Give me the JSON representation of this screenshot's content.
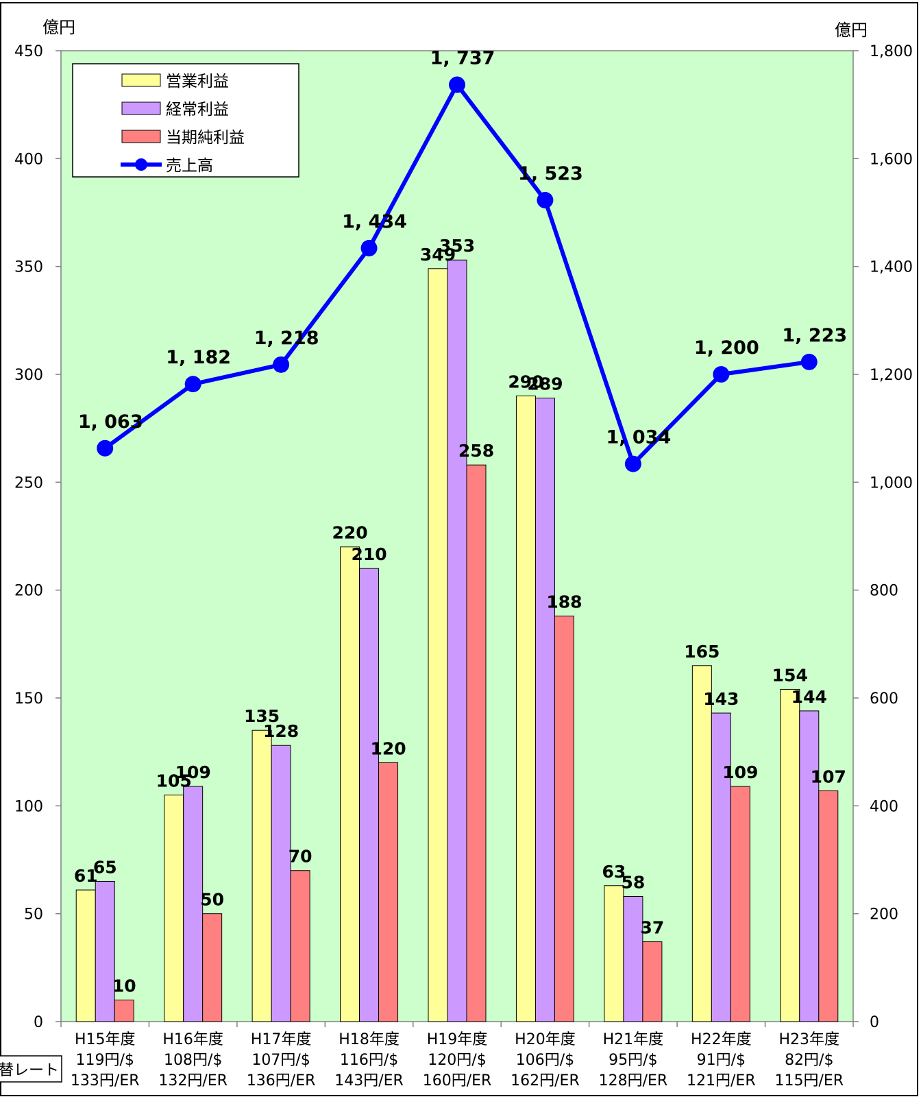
{
  "chart_data": {
    "type": "bar",
    "categories": [
      [
        "H15年度",
        "119円/$",
        "133円/ER"
      ],
      [
        "H16年度",
        "108円/$",
        "132円/ER"
      ],
      [
        "H17年度",
        "107円/$",
        "136円/ER"
      ],
      [
        "H18年度",
        "116円/$",
        "143円/ER"
      ],
      [
        "H19年度",
        "120円/$",
        "160円/ER"
      ],
      [
        "H20年度",
        "106円/$",
        "162円/ER"
      ],
      [
        "H21年度",
        "95円/$",
        "128円/ER"
      ],
      [
        "H22年度",
        "91円/$",
        "121円/ER"
      ],
      [
        "H23年度",
        "82円/$",
        "115円/ER"
      ]
    ],
    "series": [
      {
        "name": "営業利益",
        "type": "bar",
        "axis": "left",
        "color": "#ffff99",
        "values": [
          61,
          105,
          135,
          220,
          349,
          290,
          63,
          165,
          154
        ],
        "labels": [
          "61",
          "105",
          "135",
          "220",
          "349",
          "290",
          "63",
          "165",
          "154"
        ]
      },
      {
        "name": "経常利益",
        "type": "bar",
        "axis": "left",
        "color": "#cc99ff",
        "values": [
          65,
          109,
          128,
          210,
          353,
          289,
          58,
          143,
          144
        ],
        "labels": [
          "65",
          "109",
          "128",
          "210",
          "353",
          "289",
          "58",
          "143",
          "144"
        ]
      },
      {
        "name": "当期純利益",
        "type": "bar",
        "axis": "left",
        "color": "#ff8080",
        "values": [
          10,
          50,
          70,
          120,
          258,
          188,
          37,
          109,
          107
        ],
        "labels": [
          "10",
          "50",
          "70",
          "120",
          "258",
          "188",
          "37",
          "109",
          "107"
        ]
      },
      {
        "name": "売上高",
        "type": "line",
        "axis": "right",
        "color": "#0000ff",
        "values": [
          1063,
          1182,
          1218,
          1434,
          1737,
          1523,
          1034,
          1200,
          1223
        ],
        "labels": [
          "1, 063",
          "1, 182",
          "1, 218",
          "1, 434",
          "1, 737",
          "1, 523",
          "1, 034",
          "1, 200",
          "1, 223"
        ]
      }
    ],
    "yleft": {
      "unit": "億円",
      "ylim": [
        0,
        450
      ],
      "ticks": [
        "0",
        "50",
        "100",
        "150",
        "200",
        "250",
        "300",
        "350",
        "400",
        "450"
      ]
    },
    "yright": {
      "unit": "億円",
      "ylim": [
        0,
        1800
      ],
      "ticks": [
        "0",
        "200",
        "400",
        "600",
        "800",
        "1,000",
        "1,200",
        "1,400",
        "1,600",
        "1,800"
      ]
    },
    "xaxis_note": "為替レート",
    "legend_position": "top-left",
    "plot_background": "#ccffcc"
  }
}
